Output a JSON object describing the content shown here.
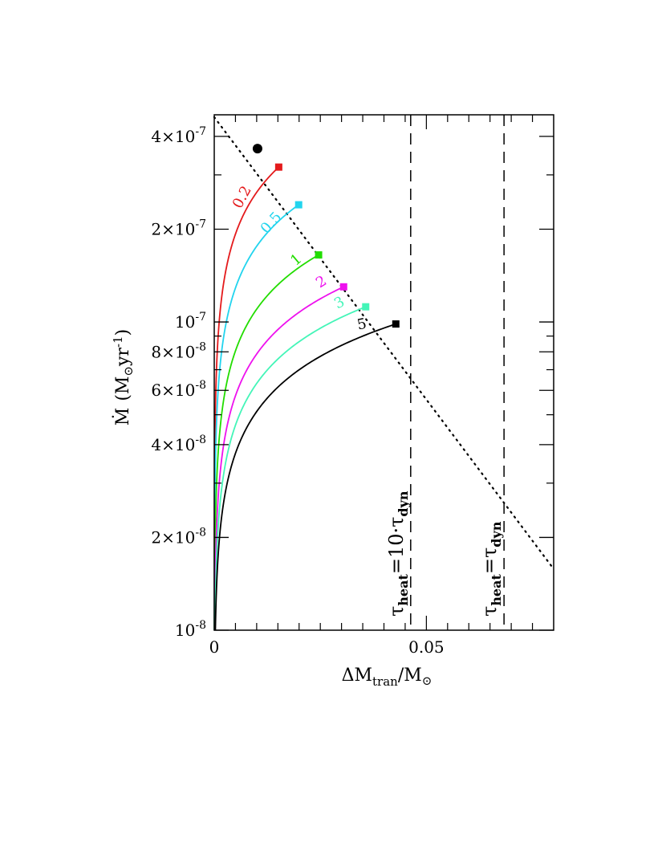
{
  "chart_data": {
    "type": "line",
    "x_axis": {
      "label_main": "ΔM",
      "label_sub": "tran",
      "label_rest": "/M",
      "label_sun": "⊙",
      "range": [
        0,
        0.08
      ],
      "scale": "linear",
      "ticks": [
        {
          "value": 0,
          "label": "0"
        },
        {
          "value": 0.05,
          "label": "0.05"
        }
      ]
    },
    "y_axis": {
      "label_main": "Ṁ",
      "label_units_a": "(M",
      "label_sun": "⊙",
      "label_units_b": "yr",
      "label_exp": "-1",
      "label_close": ")",
      "range": [
        1e-08,
        4.7e-07
      ],
      "scale": "log",
      "ticks": [
        {
          "value": 1e-08,
          "mant": "10",
          "exp": "-8"
        },
        {
          "value": 2e-08,
          "mant": "2×10",
          "exp": "-8"
        },
        {
          "value": 4e-08,
          "mant": "4×10",
          "exp": "-8"
        },
        {
          "value": 6e-08,
          "mant": "6×10",
          "exp": "-8"
        },
        {
          "value": 8e-08,
          "mant": "8×10",
          "exp": "-8"
        },
        {
          "value": 1e-07,
          "mant": "10",
          "exp": "-7"
        },
        {
          "value": 2e-07,
          "mant": "2×10",
          "exp": "-7"
        },
        {
          "value": 4e-07,
          "mant": "4×10",
          "exp": "-7"
        }
      ]
    },
    "series": [
      {
        "name": "0.2",
        "color": "#e41a1c",
        "end": [
          0.0152,
          3.18e-07
        ],
        "label_at": [
          0.0075,
          2.5e-07
        ],
        "label_rot": -62
      },
      {
        "name": "0.5",
        "color": "#22d4ee",
        "end": [
          0.0199,
          2.4e-07
        ],
        "label_at": [
          0.0142,
          2.05e-07
        ],
        "label_rot": -48
      },
      {
        "name": "1",
        "color": "#22dd00",
        "end": [
          0.0246,
          1.65e-07
        ],
        "label_at": [
          0.02,
          1.55e-07
        ],
        "label_rot": -40
      },
      {
        "name": "2",
        "color": "#ee11ee",
        "end": [
          0.0305,
          1.3e-07
        ],
        "label_at": [
          0.0258,
          1.31e-07
        ],
        "label_rot": -32
      },
      {
        "name": "3",
        "color": "#44f5b8",
        "end": [
          0.0357,
          1.12e-07
        ],
        "label_at": [
          0.03,
          1.12e-07
        ],
        "label_rot": -28
      },
      {
        "name": "5",
        "color": "#000000",
        "end": [
          0.0428,
          9.85e-08
        ],
        "label_at": [
          0.035,
          9.5e-08
        ],
        "label_rot": -12
      }
    ],
    "circle_marker": {
      "x": 0.0102,
      "y": 3.65e-07,
      "color": "#000000"
    },
    "dotted_line": {
      "x": [
        0.0,
        0.08
      ],
      "y": [
        4.62e-07,
        1.58e-08
      ],
      "style": "dotted"
    },
    "vertical_lines": [
      {
        "x": 0.0463,
        "style": "dashed",
        "label_tau": "τ",
        "label_sub1": "heat",
        "label_mid": "=10·τ",
        "label_sub2": "dyn"
      },
      {
        "x": 0.0683,
        "style": "dashed",
        "label_tau": "τ",
        "label_sub1": "heat",
        "label_mid": "=τ",
        "label_sub2": "dyn"
      }
    ],
    "grid": false,
    "legend": "none"
  }
}
